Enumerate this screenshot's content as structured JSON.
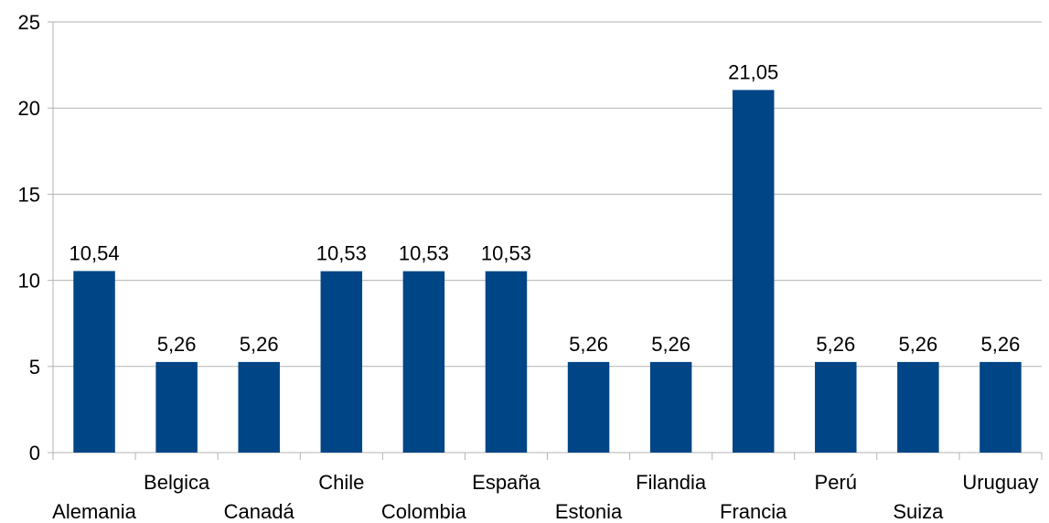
{
  "chart_data": {
    "type": "bar",
    "categories": [
      "Alemania",
      "Belgica",
      "Canadá",
      "Chile",
      "Colombia",
      "España",
      "Estonia",
      "Filandia",
      "Francia",
      "Perú",
      "Suiza",
      "Uruguay"
    ],
    "values": [
      10.54,
      5.26,
      5.26,
      10.53,
      10.53,
      10.53,
      5.26,
      5.26,
      21.05,
      5.26,
      5.26,
      5.26
    ],
    "data_labels": [
      "10,54",
      "5,26",
      "5,26",
      "10,53",
      "10,53",
      "10,53",
      "5,26",
      "5,26",
      "21,05",
      "5,26",
      "5,26",
      "5,26"
    ],
    "y_ticks": [
      0,
      5,
      10,
      15,
      20,
      25
    ],
    "ylim": [
      0,
      25
    ],
    "title": "",
    "xlabel": "",
    "ylabel": "",
    "grid": true,
    "legend": "none",
    "bar_color": "#004586",
    "grid_color": "#b3b3b3"
  }
}
